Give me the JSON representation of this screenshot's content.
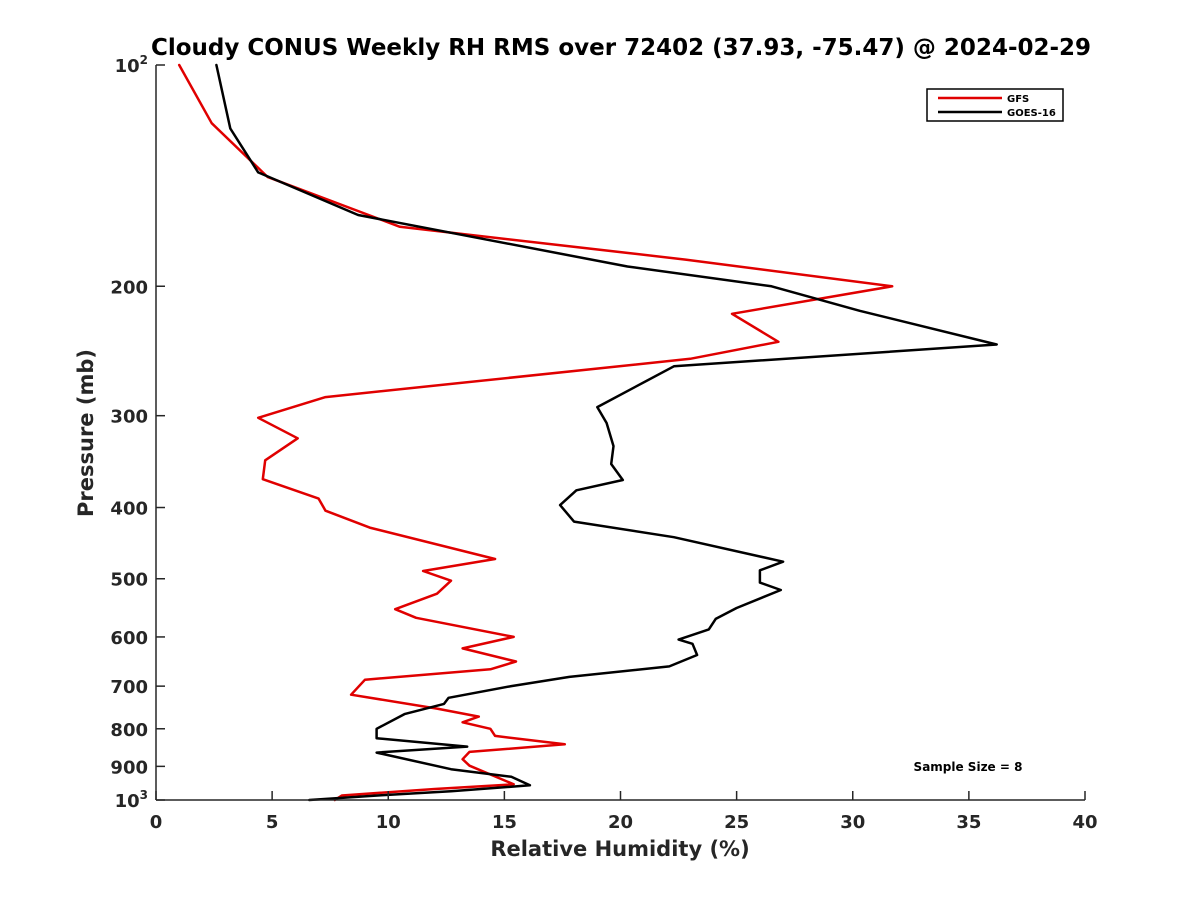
{
  "chart_data": {
    "type": "line",
    "title": "Cloudy CONUS Weekly RH RMS over 72402 (37.93, -75.47) @ 2024-02-29",
    "xlabel": "Relative Humidity (%)",
    "ylabel": "Pressure (mb)",
    "xlim": [
      0,
      40
    ],
    "ylim": [
      100,
      1000
    ],
    "y_scale": "log",
    "y_reversed": true,
    "x_ticks": [
      0,
      5,
      10,
      15,
      20,
      25,
      30,
      35,
      40
    ],
    "y_ticks": [
      {
        "value": 100,
        "label": "10",
        "sup": "2"
      },
      {
        "value": 200,
        "label": "200",
        "sup": ""
      },
      {
        "value": 300,
        "label": "300",
        "sup": ""
      },
      {
        "value": 400,
        "label": "400",
        "sup": ""
      },
      {
        "value": 500,
        "label": "500",
        "sup": ""
      },
      {
        "value": 600,
        "label": "600",
        "sup": ""
      },
      {
        "value": 700,
        "label": "700",
        "sup": ""
      },
      {
        "value": 800,
        "label": "800",
        "sup": ""
      },
      {
        "value": 900,
        "label": "900",
        "sup": ""
      },
      {
        "value": 1000,
        "label": "10",
        "sup": "3"
      }
    ],
    "grid": false,
    "legend_position": "top-right",
    "annotation": "Sample Size = 8",
    "series": [
      {
        "name": "GFS",
        "color": "#e00000",
        "points": [
          [
            1.0,
            100
          ],
          [
            2.4,
            120
          ],
          [
            4.8,
            142
          ],
          [
            10.5,
            166
          ],
          [
            22.8,
            184
          ],
          [
            31.7,
            200
          ],
          [
            24.8,
            218
          ],
          [
            26.8,
            238
          ],
          [
            23.0,
            251
          ],
          [
            7.3,
            283
          ],
          [
            4.4,
            302
          ],
          [
            6.1,
            322
          ],
          [
            4.7,
            345
          ],
          [
            4.6,
            366
          ],
          [
            7.0,
            389
          ],
          [
            7.3,
            404
          ],
          [
            9.2,
            426
          ],
          [
            14.6,
            470
          ],
          [
            11.5,
            488
          ],
          [
            12.7,
            503
          ],
          [
            12.1,
            524
          ],
          [
            10.3,
            550
          ],
          [
            11.2,
            565
          ],
          [
            15.4,
            600
          ],
          [
            13.2,
            622
          ],
          [
            15.5,
            648
          ],
          [
            14.4,
            664
          ],
          [
            9.0,
            686
          ],
          [
            8.4,
            719
          ],
          [
            12.1,
            751
          ],
          [
            13.9,
            770
          ],
          [
            13.2,
            784
          ],
          [
            14.4,
            800
          ],
          [
            14.6,
            818
          ],
          [
            17.6,
            840
          ],
          [
            13.5,
            860
          ],
          [
            13.2,
            880
          ],
          [
            13.5,
            898
          ],
          [
            15.4,
            952
          ],
          [
            12.0,
            966
          ],
          [
            8.0,
            986
          ],
          [
            7.7,
            1000
          ]
        ]
      },
      {
        "name": "GOES-16",
        "color": "#000000",
        "points": [
          [
            2.6,
            100
          ],
          [
            3.2,
            122
          ],
          [
            4.4,
            140
          ],
          [
            8.7,
            160
          ],
          [
            20.3,
            188
          ],
          [
            26.5,
            200
          ],
          [
            30.3,
            216
          ],
          [
            36.2,
            240
          ],
          [
            22.3,
            257
          ],
          [
            19.0,
            292
          ],
          [
            19.4,
            307
          ],
          [
            19.7,
            330
          ],
          [
            19.6,
            349
          ],
          [
            20.1,
            367
          ],
          [
            18.1,
            379
          ],
          [
            17.4,
            397
          ],
          [
            18.0,
            418
          ],
          [
            22.3,
            439
          ],
          [
            27.0,
            474
          ],
          [
            26.0,
            487
          ],
          [
            26.0,
            506
          ],
          [
            26.9,
            518
          ],
          [
            25.0,
            548
          ],
          [
            24.1,
            567
          ],
          [
            23.8,
            586
          ],
          [
            22.5,
            605
          ],
          [
            23.1,
            613
          ],
          [
            23.3,
            635
          ],
          [
            22.1,
            658
          ],
          [
            17.8,
            680
          ],
          [
            15.3,
            700
          ],
          [
            12.6,
            726
          ],
          [
            12.4,
            740
          ],
          [
            10.7,
            764
          ],
          [
            9.5,
            800
          ],
          [
            9.5,
            824
          ],
          [
            13.4,
            846
          ],
          [
            9.5,
            862
          ],
          [
            12.7,
            908
          ],
          [
            15.3,
            930
          ],
          [
            16.1,
            955
          ],
          [
            12.7,
            973
          ],
          [
            9.7,
            985
          ],
          [
            6.6,
            1000
          ]
        ]
      }
    ]
  }
}
